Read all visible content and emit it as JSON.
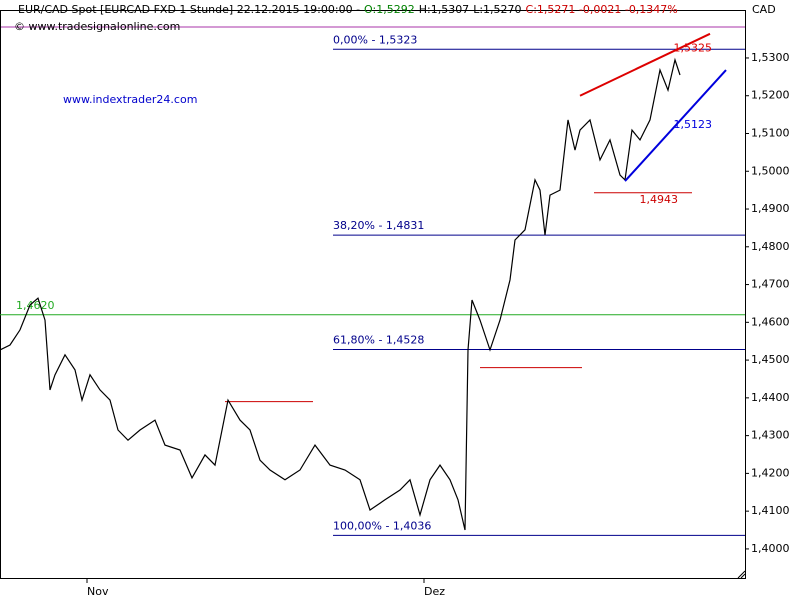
{
  "chart_data": {
    "type": "line",
    "title": "EUR/CAD Spot [EURCAD FXD  1 Stunde] 22.12.2015 19:00:00 -",
    "quote": [
      {
        "text": "O:1,5292",
        "color": "#008000"
      },
      {
        "text": "H:1,5307",
        "color": "#000000"
      },
      {
        "text": "L:1,5270",
        "color": "#000000"
      },
      {
        "text": "C:1,5271 -0,0021 -0,1347%",
        "color": "#cc0000"
      }
    ],
    "source": "© www.tradesignalonline.com",
    "watermark": "www.indextrader24.com",
    "axis_unit": "CAD",
    "series": [
      {
        "name": "EUR/CAD",
        "color": "#000000",
        "x": [
          0,
          10,
          20,
          30,
          38,
          45,
          50,
          55,
          65,
          75,
          82,
          90,
          100,
          110,
          118,
          128,
          140,
          155,
          165,
          180,
          192,
          205,
          215,
          228,
          240,
          250,
          260,
          270,
          285,
          300,
          315,
          330,
          345,
          360,
          370,
          385,
          400,
          410,
          420,
          430,
          440,
          450,
          458,
          465,
          468,
          472,
          480,
          490,
          500,
          510,
          515,
          525,
          535,
          540,
          545,
          550,
          560,
          568,
          575,
          580,
          590,
          600,
          610,
          620,
          625,
          632,
          640,
          650,
          660,
          668,
          675,
          680
        ],
        "values": [
          1.4527,
          1.454,
          1.458,
          1.4646,
          1.4664,
          1.4606,
          1.4421,
          1.4461,
          1.4514,
          1.4474,
          1.4394,
          1.4461,
          1.4421,
          1.4394,
          1.4315,
          1.4288,
          1.4315,
          1.4341,
          1.4275,
          1.4262,
          1.4188,
          1.4249,
          1.4222,
          1.4394,
          1.4341,
          1.4315,
          1.4235,
          1.4209,
          1.4183,
          1.4209,
          1.4275,
          1.4222,
          1.4209,
          1.4183,
          1.4103,
          1.413,
          1.4156,
          1.4183,
          1.409,
          1.4183,
          1.4222,
          1.4183,
          1.413,
          1.405,
          1.4527,
          1.4659,
          1.4606,
          1.4527,
          1.4606,
          1.4712,
          1.4818,
          1.4845,
          1.4977,
          1.495,
          1.4831,
          1.4937,
          1.495,
          1.5136,
          1.5056,
          1.5109,
          1.5136,
          1.503,
          1.5083,
          1.499,
          1.4977,
          1.5109,
          1.5083,
          1.5136,
          1.5268,
          1.5215,
          1.5295,
          1.5255
        ]
      }
    ],
    "xlim": [
      0,
      745
    ],
    "xticks": [
      {
        "value": 87,
        "label": "Nov"
      },
      {
        "value": 424,
        "label": "Dez"
      }
    ],
    "ylim": [
      1.3923,
      1.5427
    ],
    "yticks": [
      {
        "value": 1.53,
        "label": "1,5300"
      },
      {
        "value": 1.52,
        "label": "1,5200"
      },
      {
        "value": 1.51,
        "label": "1,5100"
      },
      {
        "value": 1.5,
        "label": "1,5000"
      },
      {
        "value": 1.49,
        "label": "1,4900"
      },
      {
        "value": 1.48,
        "label": "1,4800"
      },
      {
        "value": 1.47,
        "label": "1,4700"
      },
      {
        "value": 1.46,
        "label": "1,4600"
      },
      {
        "value": 1.45,
        "label": "1,4500"
      },
      {
        "value": 1.44,
        "label": "1,4400"
      },
      {
        "value": 1.43,
        "label": "1,4300"
      },
      {
        "value": 1.42,
        "label": "1,4200"
      },
      {
        "value": 1.41,
        "label": "1,4100"
      },
      {
        "value": 1.4,
        "label": "1,4000"
      }
    ],
    "levels": [
      {
        "value": 1.5323,
        "label": "0,00% - 1,5323",
        "from": 333,
        "to": 745,
        "color": "#00008b"
      },
      {
        "value": 1.4831,
        "label": "38,20% - 1,4831",
        "from": 333,
        "to": 745,
        "color": "#00008b"
      },
      {
        "value": 1.4528,
        "label": "61,80% - 1,4528",
        "from": 333,
        "to": 745,
        "color": "#00008b"
      },
      {
        "value": 1.4036,
        "label": "100,00% - 1,4036",
        "from": 333,
        "to": 745,
        "color": "#00008b"
      },
      {
        "value": 1.462,
        "label": "1,4620",
        "from": 0,
        "to": 745,
        "color": "#22aa22"
      },
      {
        "value": 1.439,
        "from": 225,
        "to": 313,
        "color": "#cc0000"
      },
      {
        "value": 1.448,
        "from": 480,
        "to": 582,
        "color": "#cc0000"
      },
      {
        "value": 1.4943,
        "label": "1,4943",
        "from": 594,
        "to": 692,
        "color": "#cc0000"
      }
    ],
    "trendlines": [
      {
        "x": [
          580,
          710
        ],
        "values": [
          1.52,
          1.5364
        ],
        "color": "#dd0000",
        "label": "1,5325",
        "label_value": 1.5325
      },
      {
        "x": [
          625,
          726
        ],
        "values": [
          1.4974,
          1.5268
        ],
        "color": "#0000dd",
        "label": "1,5123",
        "label_value": 1.5123
      }
    ]
  }
}
